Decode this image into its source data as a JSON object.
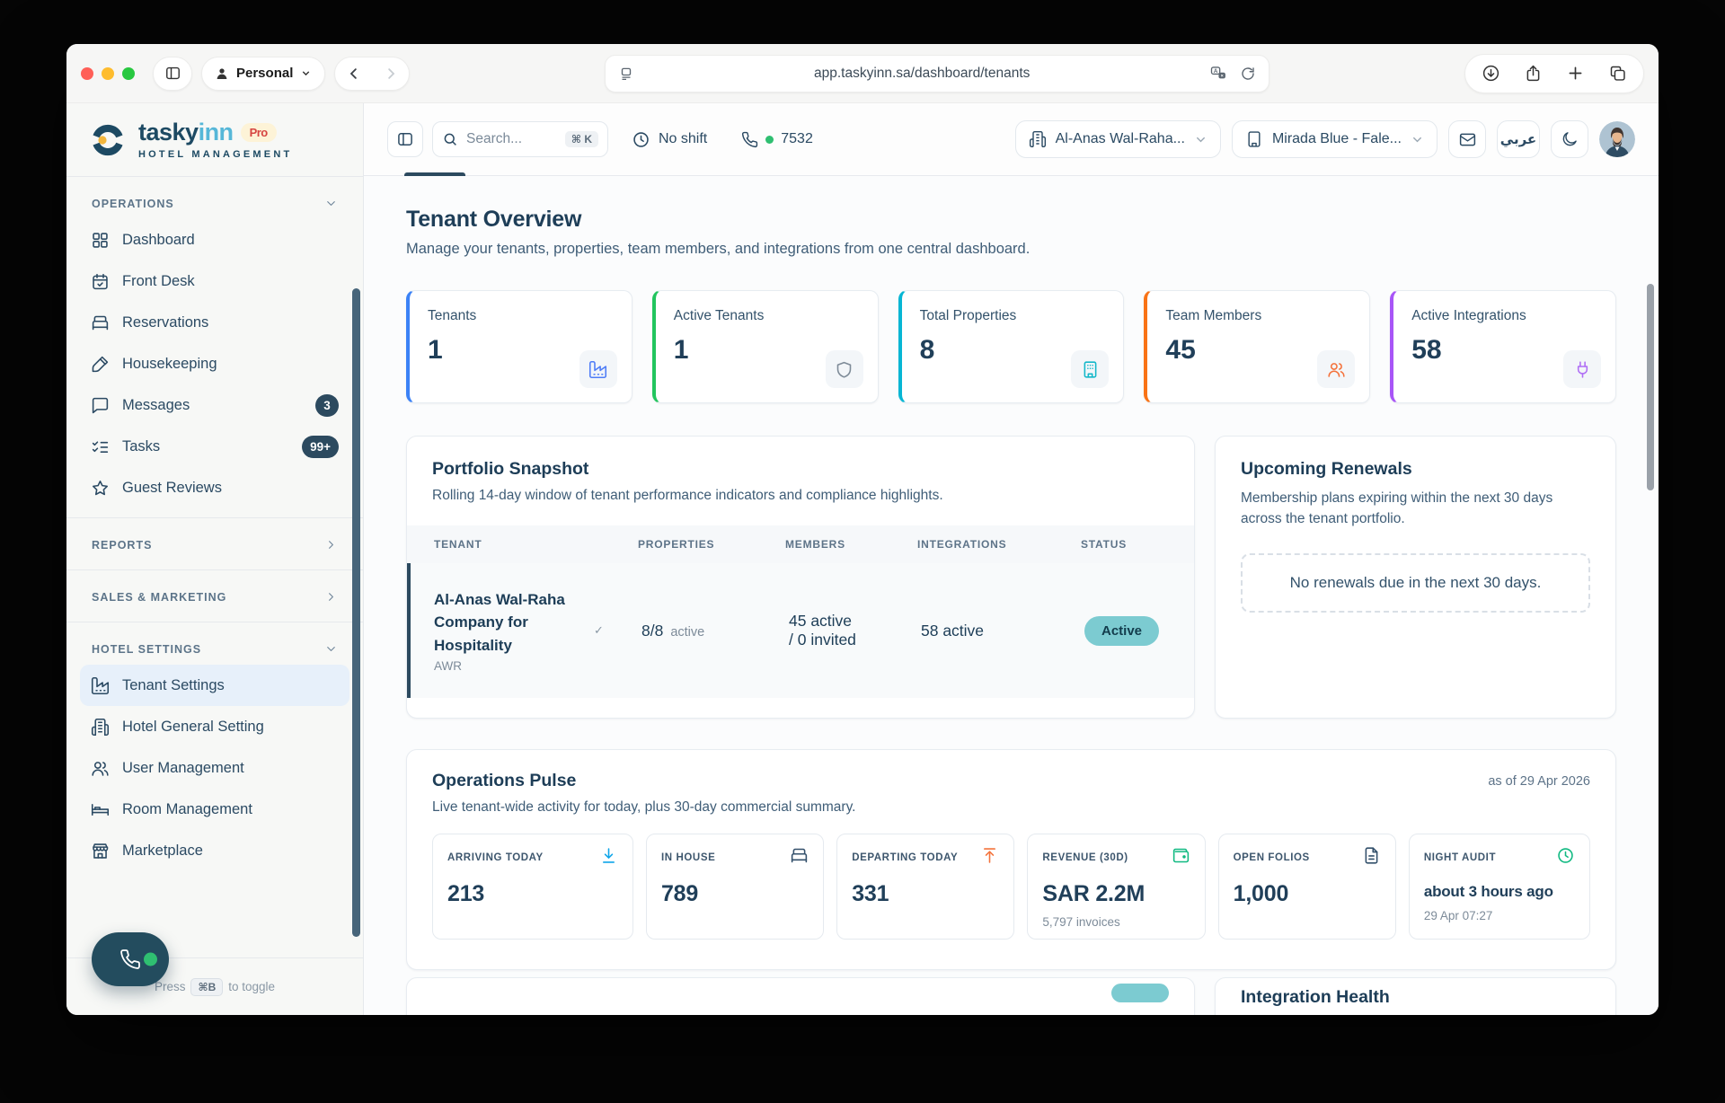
{
  "chrome": {
    "profile_label": "Personal",
    "url": "app.taskyinn.sa/dashboard/tenants"
  },
  "sidebar": {
    "brand": {
      "name_primary": "tasky",
      "name_secondary": "inn",
      "badge": "Pro",
      "tagline": "HOTEL MANAGEMENT"
    },
    "sections": [
      {
        "label": "OPERATIONS",
        "state": "expanded",
        "items": [
          {
            "label": "Dashboard",
            "icon": "grid"
          },
          {
            "label": "Front Desk",
            "icon": "calendar-check"
          },
          {
            "label": "Reservations",
            "icon": "bed"
          },
          {
            "label": "Housekeeping",
            "icon": "brush"
          },
          {
            "label": "Messages",
            "icon": "chat",
            "badge": "3"
          },
          {
            "label": "Tasks",
            "icon": "list-checks",
            "badge": "99+"
          },
          {
            "label": "Guest Reviews",
            "icon": "star"
          }
        ]
      },
      {
        "label": "REPORTS",
        "state": "collapsed",
        "items": []
      },
      {
        "label": "SALES & MARKETING",
        "state": "collapsed",
        "items": []
      },
      {
        "label": "HOTEL SETTINGS",
        "state": "expanded",
        "items": [
          {
            "label": "Tenant Settings",
            "icon": "factory",
            "active": true
          },
          {
            "label": "Hotel General Setting",
            "icon": "building-2"
          },
          {
            "label": "User Management",
            "icon": "users"
          },
          {
            "label": "Room Management",
            "icon": "bed-frame"
          },
          {
            "label": "Marketplace",
            "icon": "store"
          }
        ]
      }
    ],
    "footer_hint": {
      "prefix": "Press",
      "key": "⌘B",
      "suffix": "to toggle"
    }
  },
  "toolbar": {
    "search": {
      "placeholder": "Search...",
      "shortcut": "⌘ K"
    },
    "shift_status": "No shift",
    "phone_extension": "7532",
    "tenant_selector": "Al-Anas Wal-Raha...",
    "property_selector": "Mirada Blue - Fale...",
    "language_label": "عربي"
  },
  "page": {
    "title": "Tenant Overview",
    "subtitle": "Manage your tenants, properties, team members, and integrations from one central dashboard."
  },
  "stats": [
    {
      "label": "Tenants",
      "value": "1",
      "accent": "#3b82f6",
      "icon": "factory",
      "icon_color": "#4f7df7"
    },
    {
      "label": "Active Tenants",
      "value": "1",
      "accent": "#22c55e",
      "icon": "shield",
      "icon_color": "#7e8b98"
    },
    {
      "label": "Total Properties",
      "value": "8",
      "accent": "#06b6d4",
      "icon": "building",
      "icon_color": "#15b8c9"
    },
    {
      "label": "Team Members",
      "value": "45",
      "accent": "#f97316",
      "icon": "users",
      "icon_color": "#f4733c"
    },
    {
      "label": "Active Integrations",
      "value": "58",
      "accent": "#a855f7",
      "icon": "plug",
      "icon_color": "#b06ef5"
    }
  ],
  "portfolio": {
    "title": "Portfolio Snapshot",
    "subtitle": "Rolling 14-day window of tenant performance indicators and compliance highlights.",
    "columns": [
      "TENANT",
      "PROPERTIES",
      "MEMBERS",
      "INTEGRATIONS",
      "STATUS"
    ],
    "row": {
      "tenant": "Al-Anas Wal-Raha Company for Hospitality",
      "code": "AWR",
      "check": "✓",
      "properties": "8/8",
      "properties_suffix": "active",
      "members_line1": "45 active",
      "members_line2": "/ 0 invited",
      "integrations": "58 active",
      "status": "Active",
      "status_color": "#7ccbd1"
    }
  },
  "renewals": {
    "title": "Upcoming Renewals",
    "subtitle": "Membership plans expiring within the next 30 days across the tenant portfolio.",
    "empty_message": "No renewals due in the next 30 days."
  },
  "operations": {
    "title": "Operations Pulse",
    "subtitle": "Live tenant-wide activity for today, plus 30-day commercial summary.",
    "as_of": "as of 29 Apr 2026",
    "tiles": [
      {
        "label": "ARRIVING TODAY",
        "value": "213",
        "icon": "arrow-down-line",
        "icon_color": "#0ea5e9"
      },
      {
        "label": "IN HOUSE",
        "value": "789",
        "icon": "bed",
        "icon_color": "#33506b"
      },
      {
        "label": "DEPARTING TODAY",
        "value": "331",
        "icon": "arrow-up-line",
        "icon_color": "#f4733c"
      },
      {
        "label": "REVENUE (30D)",
        "value": "SAR 2.2M",
        "sub": "5,797 invoices",
        "icon": "wallet",
        "icon_color": "#10b981"
      },
      {
        "label": "OPEN FOLIOS",
        "value": "1,000",
        "icon": "file-text",
        "icon_color": "#33506b"
      },
      {
        "label": "NIGHT AUDIT",
        "value": "about 3 hours ago",
        "sub": "29 Apr 07:27",
        "icon": "clock",
        "icon_color": "#10b981",
        "small": true
      }
    ]
  },
  "bottom_partial": {
    "right_title": "Integration Health"
  }
}
